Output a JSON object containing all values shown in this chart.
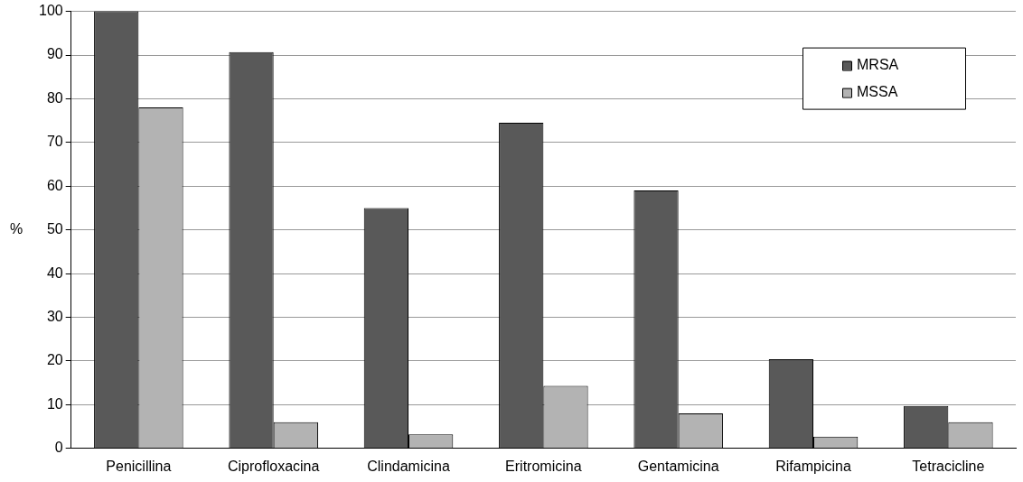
{
  "chart_data": {
    "type": "bar",
    "ylabel": "%",
    "categories": [
      "Penicillina",
      "Ciprofloxacina",
      "Clindamicina",
      "Eritromicina",
      "Gentamicina",
      "Rifampicina",
      "Tetracicline"
    ],
    "series": [
      {
        "name": "MRSA",
        "color": "#595959",
        "values": [
          100,
          90.7,
          55,
          74.5,
          59,
          20.4,
          9.7
        ]
      },
      {
        "name": "MSSA",
        "color": "#b3b3b3",
        "values": [
          78,
          6,
          3.2,
          14.3,
          8,
          2.7,
          6
        ]
      }
    ],
    "ylim": [
      0,
      100
    ],
    "yticks": [
      0,
      10,
      20,
      30,
      40,
      50,
      60,
      70,
      80,
      90,
      100
    ],
    "grid": "y",
    "legend": "top right"
  }
}
